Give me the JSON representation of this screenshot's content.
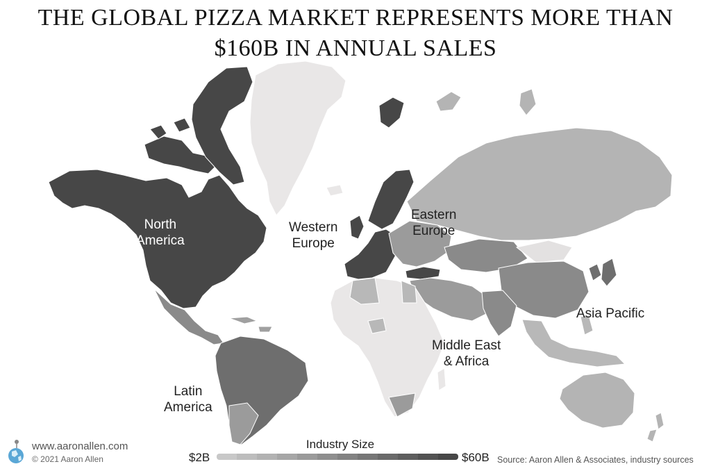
{
  "title": {
    "line1": "THE GLOBAL PIZZA MARKET REPRESENTS MORE THAN",
    "line2": "$160B IN ANNUAL SALES"
  },
  "regions": {
    "north_america": {
      "line1": "North",
      "line2": "America"
    },
    "western_europe": {
      "line1": "Western",
      "line2": "Europe"
    },
    "eastern_europe": {
      "line1": "Eastern",
      "line2": "Europe"
    },
    "asia_pacific": {
      "line1": "Asia Pacific"
    },
    "middle_east_africa": {
      "line1": "Middle East",
      "line2": "& Africa"
    },
    "latin_america": {
      "line1": "Latin",
      "line2": "America"
    }
  },
  "legend": {
    "title": "Industry Size",
    "min_label": "$2B",
    "max_label": "$60B",
    "colors": [
      "#c8c8c8",
      "#bdbdbd",
      "#b2b2b2",
      "#a6a6a6",
      "#9a9a9a",
      "#8e8e8e",
      "#828282",
      "#767676",
      "#6a6a6a",
      "#5e5e5e",
      "#525252",
      "#474747"
    ]
  },
  "footer": {
    "website": "www.aaronallen.com",
    "copyright": "© 2021 Aaron Allen",
    "source": "Source: Aaron Allen & Associates, industry sources"
  },
  "colors": {
    "darkest": "#474747",
    "dark": "#6e6e6e",
    "medium": "#9b9b9b",
    "light": "#b8b8b8",
    "lightest": "#e9e7e7"
  }
}
